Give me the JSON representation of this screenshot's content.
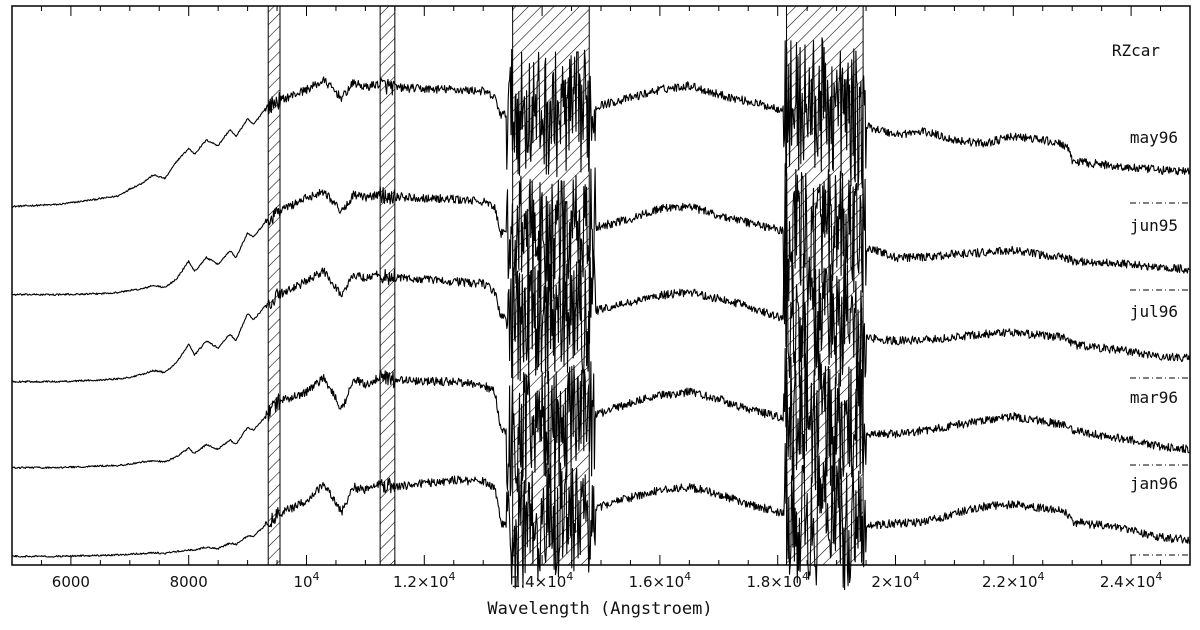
{
  "chart_data": {
    "type": "line",
    "title": "RZcar",
    "xlabel": "Wavelength (Angstroem)",
    "ylabel": "",
    "xlim": [
      5000,
      25000
    ],
    "x_ticks": [
      {
        "value": 6000,
        "base": "6000",
        "exp": ""
      },
      {
        "value": 8000,
        "base": "8000",
        "exp": ""
      },
      {
        "value": 10000,
        "base": "10",
        "exp": "4"
      },
      {
        "value": 12000,
        "base": "1.2×10",
        "exp": "4"
      },
      {
        "value": 14000,
        "base": "1.4×10",
        "exp": "4"
      },
      {
        "value": 16000,
        "base": "1.6×10",
        "exp": "4"
      },
      {
        "value": 18000,
        "base": "1.8×10",
        "exp": "4"
      },
      {
        "value": 20000,
        "base": "2×10",
        "exp": "4"
      },
      {
        "value": 22000,
        "base": "2.2×10",
        "exp": "4"
      },
      {
        "value": 24000,
        "base": "2.4×10",
        "exp": "4"
      }
    ],
    "hatched_regions": [
      [
        9350,
        9550
      ],
      [
        11250,
        11500
      ],
      [
        13500,
        14800
      ],
      [
        18150,
        19450
      ]
    ],
    "series": [
      {
        "name": "may96",
        "offset": 4,
        "x": [
          5000,
          5800,
          6400,
          6800,
          7000,
          7200,
          7400,
          7600,
          7800,
          8000,
          8100,
          8300,
          8500,
          8700,
          8800,
          9000,
          9100,
          9300,
          9500,
          10000,
          10300,
          10600,
          10800,
          11000,
          11200,
          11500,
          12000,
          12500,
          13000,
          13200,
          13300,
          13500,
          14000,
          14500,
          15000,
          15500,
          16000,
          16500,
          17000,
          17500,
          18000,
          18500,
          19000,
          19500,
          20000,
          20500,
          21000,
          21500,
          22000,
          22500,
          22900,
          23000,
          23500,
          24000,
          24500,
          25000
        ],
        "y": [
          0.05,
          0.08,
          0.15,
          0.2,
          0.3,
          0.38,
          0.5,
          0.45,
          0.7,
          0.88,
          0.8,
          1.0,
          0.92,
          1.15,
          1.05,
          1.3,
          1.22,
          1.45,
          1.55,
          1.72,
          1.85,
          1.6,
          1.82,
          1.75,
          1.8,
          1.75,
          1.73,
          1.72,
          1.7,
          1.6,
          1.35,
          1.4,
          1.38,
          1.35,
          1.5,
          1.6,
          1.72,
          1.78,
          1.65,
          1.55,
          1.45,
          1.5,
          1.45,
          1.2,
          1.08,
          1.12,
          1.0,
          0.95,
          1.05,
          1.0,
          0.92,
          0.7,
          0.65,
          0.6,
          0.57,
          0.55
        ]
      },
      {
        "name": "jun95",
        "offset": 3,
        "x": [
          5000,
          5800,
          6400,
          6800,
          7000,
          7200,
          7400,
          7600,
          7800,
          8000,
          8100,
          8300,
          8500,
          8700,
          8800,
          9000,
          9100,
          9300,
          9500,
          10000,
          10300,
          10600,
          10800,
          11000,
          11200,
          11500,
          12000,
          12500,
          13000,
          13200,
          13300,
          13500,
          14000,
          14500,
          15000,
          15500,
          16000,
          16500,
          17000,
          17500,
          18000,
          18500,
          19000,
          19500,
          20000,
          20500,
          21000,
          21500,
          22000,
          22500,
          22900,
          23000,
          23500,
          24000,
          24500,
          25000
        ],
        "y": [
          0.02,
          0.02,
          0.03,
          0.05,
          0.08,
          0.1,
          0.15,
          0.12,
          0.25,
          0.5,
          0.35,
          0.55,
          0.45,
          0.65,
          0.55,
          0.9,
          0.85,
          1.05,
          1.2,
          1.4,
          1.5,
          1.2,
          1.45,
          1.4,
          1.45,
          1.42,
          1.4,
          1.38,
          1.35,
          1.25,
          0.9,
          0.85,
          0.8,
          0.85,
          1.0,
          1.1,
          1.25,
          1.28,
          1.15,
          1.05,
          0.95,
          0.85,
          0.8,
          0.7,
          0.55,
          0.55,
          0.6,
          0.62,
          0.65,
          0.58,
          0.55,
          0.5,
          0.48,
          0.45,
          0.4,
          0.38
        ]
      },
      {
        "name": "jul96",
        "offset": 2,
        "x": [
          5000,
          5800,
          6400,
          6800,
          7000,
          7200,
          7400,
          7600,
          7800,
          8000,
          8100,
          8300,
          8500,
          8700,
          8800,
          9000,
          9100,
          9300,
          9500,
          10000,
          10300,
          10600,
          10800,
          11000,
          11200,
          11500,
          12000,
          12500,
          13000,
          13200,
          13300,
          13500,
          14000,
          14500,
          15000,
          15500,
          16000,
          16500,
          17000,
          17500,
          18000,
          18500,
          19000,
          19500,
          20000,
          20500,
          21000,
          21500,
          22000,
          22500,
          22900,
          23000,
          23500,
          24000,
          24500,
          25000
        ],
        "y": [
          0.02,
          0.02,
          0.04,
          0.06,
          0.08,
          0.12,
          0.18,
          0.15,
          0.3,
          0.55,
          0.4,
          0.6,
          0.5,
          0.7,
          0.6,
          1.0,
          0.9,
          1.1,
          1.25,
          1.45,
          1.6,
          1.25,
          1.55,
          1.5,
          1.55,
          1.5,
          1.48,
          1.45,
          1.42,
          1.3,
          0.95,
          0.9,
          0.85,
          0.95,
          1.05,
          1.15,
          1.25,
          1.3,
          1.2,
          1.1,
          0.95,
          0.9,
          0.85,
          0.65,
          0.6,
          0.62,
          0.65,
          0.7,
          0.72,
          0.68,
          0.65,
          0.55,
          0.5,
          0.45,
          0.38,
          0.35
        ]
      },
      {
        "name": "mar96",
        "offset": 1,
        "x": [
          5000,
          5800,
          6400,
          6800,
          7000,
          7200,
          7400,
          7600,
          7800,
          8000,
          8100,
          8300,
          8500,
          8700,
          8800,
          9000,
          9100,
          9300,
          9500,
          10000,
          10300,
          10600,
          10800,
          11000,
          11200,
          11500,
          12000,
          12500,
          13000,
          13200,
          13300,
          13500,
          14000,
          14500,
          15000,
          15500,
          16000,
          16500,
          17000,
          17500,
          18000,
          18500,
          19000,
          19500,
          20000,
          20500,
          21000,
          21500,
          22000,
          22500,
          22900,
          23000,
          23500,
          24000,
          24500,
          25000
        ],
        "y": [
          0.02,
          0.02,
          0.04,
          0.05,
          0.07,
          0.1,
          0.12,
          0.1,
          0.18,
          0.3,
          0.22,
          0.35,
          0.28,
          0.42,
          0.35,
          0.6,
          0.55,
          0.75,
          0.95,
          1.1,
          1.3,
          0.85,
          1.3,
          1.2,
          1.3,
          1.28,
          1.25,
          1.25,
          1.2,
          1.1,
          0.55,
          0.5,
          0.55,
          0.65,
          0.8,
          0.95,
          1.05,
          1.1,
          1.0,
          0.85,
          0.75,
          0.7,
          0.6,
          0.5,
          0.5,
          0.55,
          0.62,
          0.7,
          0.75,
          0.68,
          0.62,
          0.55,
          0.48,
          0.42,
          0.32,
          0.28
        ]
      },
      {
        "name": "jan96",
        "offset": 0,
        "x": [
          5000,
          5800,
          6400,
          6800,
          7000,
          7200,
          7400,
          7600,
          7800,
          8000,
          8100,
          8300,
          8500,
          8700,
          8800,
          9000,
          9100,
          9300,
          9500,
          10000,
          10300,
          10600,
          10800,
          11000,
          11200,
          11500,
          12000,
          12500,
          13000,
          13200,
          13300,
          13500,
          14000,
          14500,
          15000,
          15500,
          16000,
          16500,
          17000,
          17500,
          18000,
          18500,
          19000,
          19500,
          20000,
          20500,
          21000,
          21500,
          22000,
          22500,
          22900,
          23000,
          23500,
          24000,
          24500,
          25000
        ],
        "y": [
          0.01,
          0.01,
          0.02,
          0.03,
          0.04,
          0.05,
          0.06,
          0.05,
          0.08,
          0.1,
          0.1,
          0.14,
          0.12,
          0.2,
          0.18,
          0.3,
          0.3,
          0.45,
          0.6,
          0.8,
          1.05,
          0.65,
          1.0,
          0.95,
          1.05,
          1.0,
          1.05,
          1.1,
          1.08,
          1.0,
          0.5,
          0.35,
          0.45,
          0.6,
          0.72,
          0.85,
          0.95,
          1.0,
          0.9,
          0.75,
          0.65,
          0.55,
          0.5,
          0.45,
          0.48,
          0.5,
          0.62,
          0.72,
          0.75,
          0.7,
          0.65,
          0.5,
          0.45,
          0.38,
          0.28,
          0.24
        ]
      }
    ]
  }
}
